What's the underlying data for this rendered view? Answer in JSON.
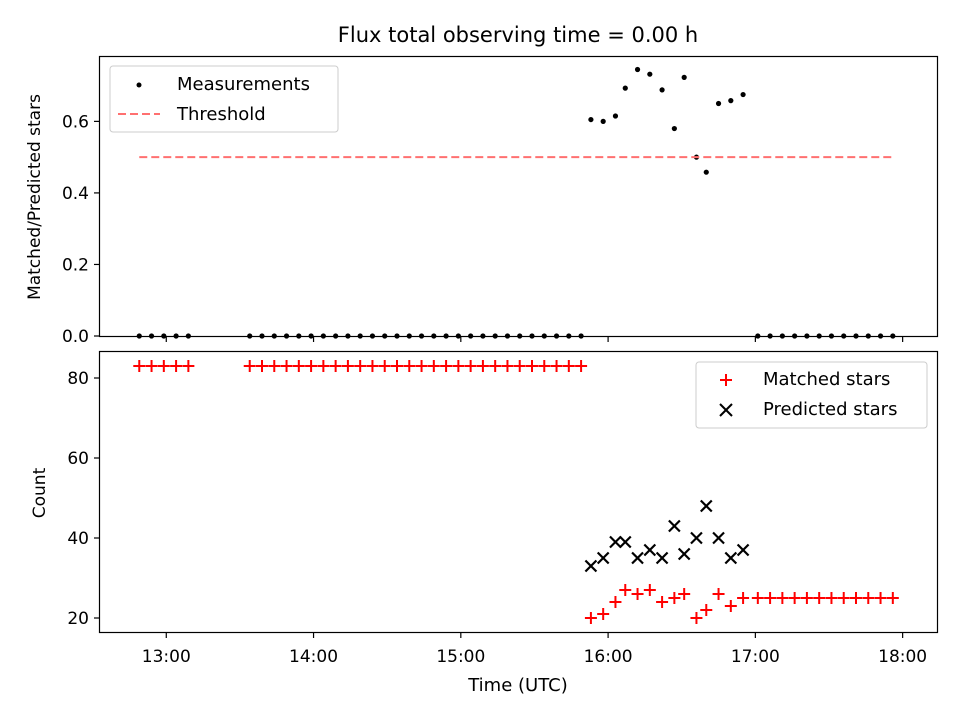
{
  "chart_data": [
    {
      "type": "scatter",
      "title": "Flux total observing time = 0.00 h",
      "xlabel": "",
      "ylabel": "Matched/Predicted stars",
      "ylim": [
        0,
        0.78
      ],
      "yticks": [
        0.0,
        0.2,
        0.4,
        0.6
      ],
      "ytick_labels": [
        "0.0",
        "0.2",
        "0.4",
        "0.6"
      ],
      "xlim": [
        "12:33",
        "18:14"
      ],
      "xticks": [
        "13:00",
        "14:00",
        "15:00",
        "16:00",
        "17:00",
        "18:00"
      ],
      "legend_position": "upper left",
      "legend": [
        {
          "label": "Measurements",
          "kind": "dot",
          "color": "#000000"
        },
        {
          "label": "Threshold",
          "kind": "dashed-line",
          "color": "#ff7070"
        }
      ],
      "series": [
        {
          "name": "Measurements",
          "color": "#000000",
          "points": [
            [
              "12:49",
              0
            ],
            [
              "12:54",
              0
            ],
            [
              "12:59",
              0
            ],
            [
              "13:04",
              0
            ],
            [
              "13:09",
              0
            ],
            [
              "13:34",
              0
            ],
            [
              "13:39",
              0
            ],
            [
              "13:44",
              0
            ],
            [
              "13:49",
              0
            ],
            [
              "13:54",
              0
            ],
            [
              "13:59",
              0
            ],
            [
              "14:04",
              0
            ],
            [
              "14:09",
              0
            ],
            [
              "14:14",
              0
            ],
            [
              "14:19",
              0
            ],
            [
              "14:24",
              0
            ],
            [
              "14:29",
              0
            ],
            [
              "14:34",
              0
            ],
            [
              "14:39",
              0
            ],
            [
              "14:44",
              0
            ],
            [
              "14:49",
              0
            ],
            [
              "14:54",
              0
            ],
            [
              "14:59",
              0
            ],
            [
              "15:04",
              0
            ],
            [
              "15:09",
              0
            ],
            [
              "15:14",
              0
            ],
            [
              "15:19",
              0
            ],
            [
              "15:24",
              0
            ],
            [
              "15:29",
              0
            ],
            [
              "15:34",
              0
            ],
            [
              "15:39",
              0
            ],
            [
              "15:44",
              0
            ],
            [
              "15:49",
              0
            ],
            [
              "15:53",
              0.605
            ],
            [
              "15:58",
              0.6
            ],
            [
              "16:03",
              0.615
            ],
            [
              "16:07",
              0.693
            ],
            [
              "16:12",
              0.745
            ],
            [
              "16:17",
              0.732
            ],
            [
              "16:22",
              0.688
            ],
            [
              "16:27",
              0.58
            ],
            [
              "16:31",
              0.723
            ],
            [
              "16:36",
              0.5
            ],
            [
              "16:40",
              0.458
            ],
            [
              "16:45",
              0.65
            ],
            [
              "16:50",
              0.658
            ],
            [
              "16:55",
              0.675
            ],
            [
              "17:01",
              0
            ],
            [
              "17:06",
              0
            ],
            [
              "17:11",
              0
            ],
            [
              "17:16",
              0
            ],
            [
              "17:21",
              0
            ],
            [
              "17:26",
              0
            ],
            [
              "17:31",
              0
            ],
            [
              "17:36",
              0
            ],
            [
              "17:41",
              0
            ],
            [
              "17:46",
              0
            ],
            [
              "17:51",
              0
            ],
            [
              "17:56",
              0
            ]
          ]
        },
        {
          "name": "Threshold",
          "color": "#ff7070",
          "points": [
            [
              "12:49",
              0.5
            ],
            [
              "17:56",
              0.5
            ]
          ]
        }
      ]
    },
    {
      "type": "scatter",
      "title": "",
      "xlabel": "Time (UTC)",
      "ylabel": "Count",
      "ylim": [
        16.5,
        86.5
      ],
      "yticks": [
        20,
        40,
        60,
        80
      ],
      "ytick_labels": [
        "20",
        "40",
        "60",
        "80"
      ],
      "xlim": [
        "12:33",
        "18:14"
      ],
      "xticks": [
        "13:00",
        "14:00",
        "15:00",
        "16:00",
        "17:00",
        "18:00"
      ],
      "xtick_labels": [
        "13:00",
        "14:00",
        "15:00",
        "16:00",
        "17:00",
        "18:00"
      ],
      "legend_position": "upper right",
      "legend": [
        {
          "label": "Matched stars",
          "kind": "plus",
          "color": "#ff0000"
        },
        {
          "label": "Predicted stars",
          "kind": "cross",
          "color": "#000000"
        }
      ],
      "series": [
        {
          "name": "Matched stars",
          "color": "#ff0000",
          "points": [
            [
              "12:49",
              83
            ],
            [
              "12:54",
              83
            ],
            [
              "12:59",
              83
            ],
            [
              "13:04",
              83
            ],
            [
              "13:09",
              83
            ],
            [
              "13:34",
              83
            ],
            [
              "13:39",
              83
            ],
            [
              "13:44",
              83
            ],
            [
              "13:49",
              83
            ],
            [
              "13:54",
              83
            ],
            [
              "13:59",
              83
            ],
            [
              "14:04",
              83
            ],
            [
              "14:09",
              83
            ],
            [
              "14:14",
              83
            ],
            [
              "14:19",
              83
            ],
            [
              "14:24",
              83
            ],
            [
              "14:29",
              83
            ],
            [
              "14:34",
              83
            ],
            [
              "14:39",
              83
            ],
            [
              "14:44",
              83
            ],
            [
              "14:49",
              83
            ],
            [
              "14:54",
              83
            ],
            [
              "14:59",
              83
            ],
            [
              "15:04",
              83
            ],
            [
              "15:09",
              83
            ],
            [
              "15:14",
              83
            ],
            [
              "15:19",
              83
            ],
            [
              "15:24",
              83
            ],
            [
              "15:29",
              83
            ],
            [
              "15:34",
              83
            ],
            [
              "15:39",
              83
            ],
            [
              "15:44",
              83
            ],
            [
              "15:49",
              83
            ],
            [
              "15:53",
              20
            ],
            [
              "15:58",
              21
            ],
            [
              "16:03",
              24
            ],
            [
              "16:07",
              27
            ],
            [
              "16:12",
              26
            ],
            [
              "16:17",
              27
            ],
            [
              "16:22",
              24
            ],
            [
              "16:27",
              25
            ],
            [
              "16:31",
              26
            ],
            [
              "16:36",
              20
            ],
            [
              "16:40",
              22
            ],
            [
              "16:45",
              26
            ],
            [
              "16:50",
              23
            ],
            [
              "16:55",
              25
            ],
            [
              "17:01",
              25
            ],
            [
              "17:06",
              25
            ],
            [
              "17:11",
              25
            ],
            [
              "17:16",
              25
            ],
            [
              "17:21",
              25
            ],
            [
              "17:26",
              25
            ],
            [
              "17:31",
              25
            ],
            [
              "17:36",
              25
            ],
            [
              "17:41",
              25
            ],
            [
              "17:46",
              25
            ],
            [
              "17:51",
              25
            ],
            [
              "17:56",
              25
            ]
          ]
        },
        {
          "name": "Predicted stars",
          "color": "#000000",
          "points": [
            [
              "15:53",
              33
            ],
            [
              "15:58",
              35
            ],
            [
              "16:03",
              39
            ],
            [
              "16:07",
              39
            ],
            [
              "16:12",
              35
            ],
            [
              "16:17",
              37
            ],
            [
              "16:22",
              35
            ],
            [
              "16:27",
              43
            ],
            [
              "16:31",
              36
            ],
            [
              "16:36",
              40
            ],
            [
              "16:40",
              48
            ],
            [
              "16:45",
              40
            ],
            [
              "16:50",
              35
            ],
            [
              "16:55",
              37
            ]
          ]
        }
      ]
    }
  ]
}
